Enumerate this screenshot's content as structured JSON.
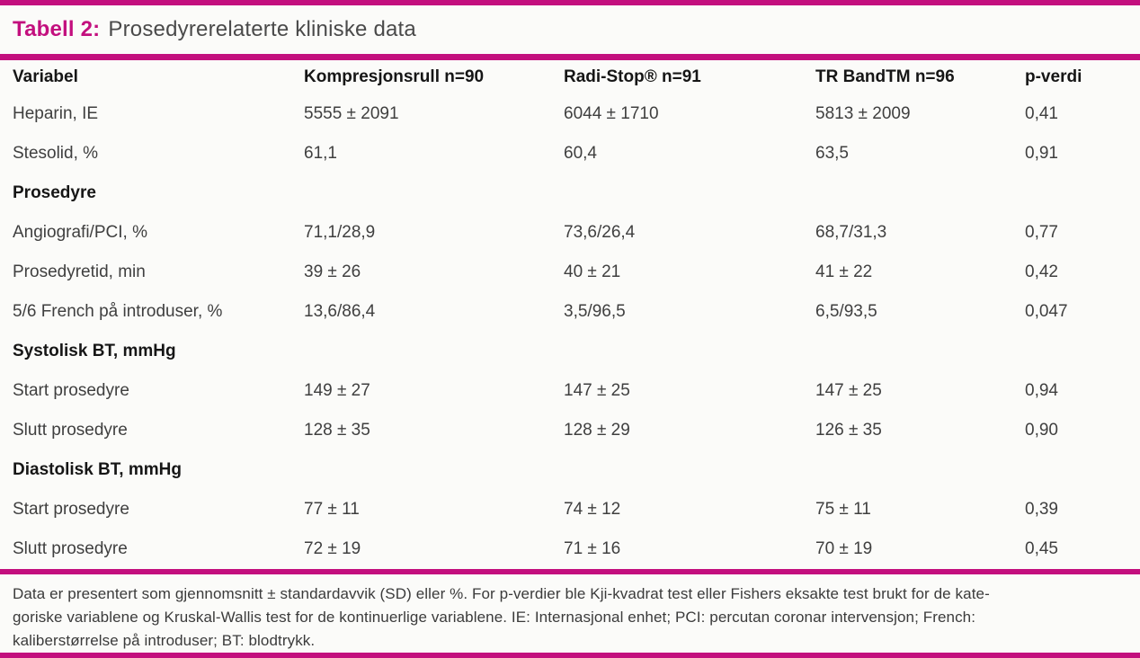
{
  "colors": {
    "accent": "#C30F7E"
  },
  "title": {
    "label": "Tabell 2:",
    "text": "Prosedyrerelaterte kliniske data"
  },
  "table": {
    "columns": [
      "Variabel",
      "Kompresjonsrull n=90",
      "Radi-Stop® n=91",
      "TR BandTM n=96",
      "p-verdi"
    ],
    "rows": [
      {
        "type": "data",
        "cells": [
          "Heparin, IE",
          "5555 ± 2091",
          "6044 ± 1710",
          "5813 ± 2009",
          "0,41"
        ]
      },
      {
        "type": "data",
        "cells": [
          "Stesolid, %",
          "61,1",
          "60,4",
          "63,5",
          "0,91"
        ]
      },
      {
        "type": "section",
        "cells": [
          "Prosedyre",
          "",
          "",
          "",
          ""
        ]
      },
      {
        "type": "data",
        "cells": [
          "Angiografi/PCI, %",
          "71,1/28,9",
          "73,6/26,4",
          "68,7/31,3",
          "0,77"
        ]
      },
      {
        "type": "data",
        "cells": [
          "Prosedyretid, min",
          "39 ± 26",
          "40 ± 21",
          "41 ± 22",
          "0,42"
        ]
      },
      {
        "type": "data",
        "cells": [
          "5/6 French på introduser, %",
          "13,6/86,4",
          "3,5/96,5",
          "6,5/93,5",
          "0,047"
        ]
      },
      {
        "type": "section",
        "cells": [
          "Systolisk BT, mmHg",
          "",
          "",
          "",
          ""
        ]
      },
      {
        "type": "data",
        "cells": [
          "Start prosedyre",
          "149 ± 27",
          "147 ± 25",
          "147 ± 25",
          "0,94"
        ]
      },
      {
        "type": "data",
        "cells": [
          "Slutt prosedyre",
          "128 ± 35",
          "128 ± 29",
          "126 ± 35",
          "0,90"
        ]
      },
      {
        "type": "section",
        "cells": [
          "Diastolisk BT, mmHg",
          "",
          "",
          "",
          ""
        ]
      },
      {
        "type": "data",
        "cells": [
          "Start prosedyre",
          "77 ± 11",
          "74 ± 12",
          "75 ± 11",
          "0,39"
        ]
      },
      {
        "type": "data",
        "cells": [
          "Slutt prosedyre",
          "72 ± 19",
          "71 ± 16",
          "70 ± 19",
          "0,45"
        ]
      }
    ]
  },
  "footnote": {
    "lines": [
      "Data er presentert som gjennomsnitt ± standardavvik (SD) eller %. For p-verdier ble Kji-kvadrat test eller Fishers eksakte test brukt for de kate-",
      "goriske variablene og Kruskal-Wallis test for de kontinuerlige variablene. IE: Internasjonal enhet; PCI: percutan coronar intervensjon; French:",
      "kaliberstørrelse på introduser; BT: blodtrykk."
    ],
    "full_text": "Data er presentert som gjennomsnitt ± standardavvik (SD) eller %. For p-verdier ble Kji-kvadrat test eller Fishers eksakte test brukt for de kategoriske variablene og Kruskal-Wallis test for de kontinuerlige variablene. IE: Internasjonal enhet; PCI: percutan coronar intervensjon; French: kaliberstørrelse på introduser; BT: blodtrykk."
  }
}
